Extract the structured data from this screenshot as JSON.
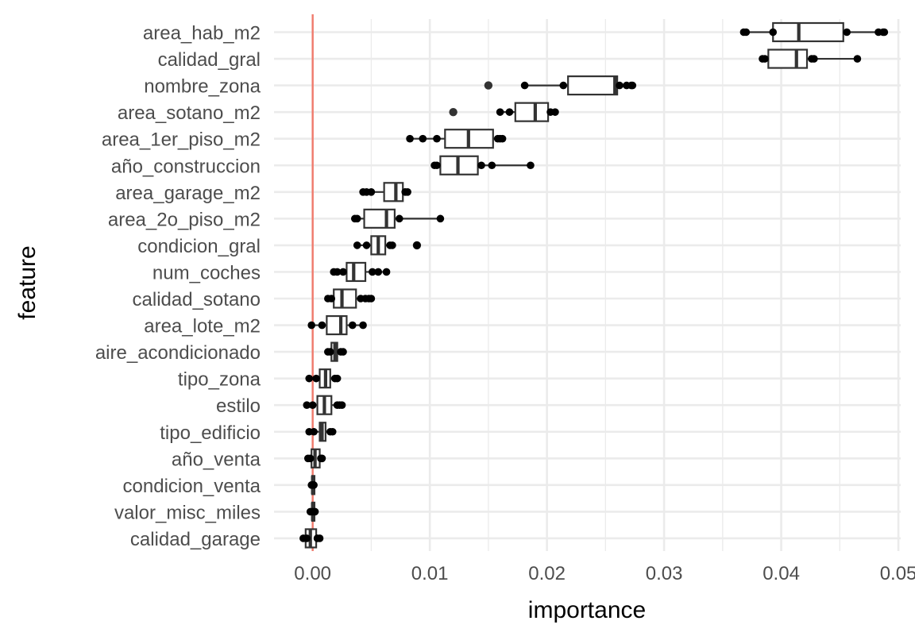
{
  "chart_data": {
    "type": "boxplot",
    "xlabel": "importance",
    "ylabel": "feature",
    "xlim": [
      -0.0033,
      0.0502
    ],
    "x_ticks": [
      0.0,
      0.01,
      0.02,
      0.03,
      0.04,
      0.05
    ],
    "x_tick_labels": [
      "0.00",
      "0.01",
      "0.02",
      "0.03",
      "0.04",
      "0.05"
    ],
    "grid": true,
    "reference_line": {
      "x": 0.0,
      "color": "#f07a6c"
    },
    "box_color": "#333333",
    "point_color": "#000000",
    "features": [
      {
        "name": "area_hab_m2",
        "whisker_low": 0.0368,
        "q1": 0.0393,
        "median": 0.0415,
        "q3": 0.0453,
        "whisker_high": 0.0488,
        "outliers": [],
        "points": [
          0.0368,
          0.037,
          0.0393,
          0.0456,
          0.0483,
          0.0487,
          0.0488
        ]
      },
      {
        "name": "calidad_gral",
        "whisker_low": 0.0384,
        "q1": 0.0389,
        "median": 0.0413,
        "q3": 0.0422,
        "whisker_high": 0.0465,
        "outliers": [],
        "points": [
          0.0384,
          0.0386,
          0.0426,
          0.0428,
          0.0465
        ]
      },
      {
        "name": "nombre_zona",
        "whisker_low": 0.0181,
        "q1": 0.0218,
        "median": 0.0258,
        "q3": 0.026,
        "whisker_high": 0.0273,
        "outliers": [
          0.015
        ],
        "points": [
          0.0181,
          0.0214,
          0.0262,
          0.0268,
          0.0272,
          0.0273
        ]
      },
      {
        "name": "area_sotano_m2",
        "whisker_low": 0.016,
        "q1": 0.0173,
        "median": 0.019,
        "q3": 0.0201,
        "whisker_high": 0.0207,
        "outliers": [
          0.012
        ],
        "points": [
          0.016,
          0.0168,
          0.0203,
          0.0207
        ]
      },
      {
        "name": "area_1er_piso_m2",
        "whisker_low": 0.0083,
        "q1": 0.0113,
        "median": 0.0133,
        "q3": 0.0154,
        "whisker_high": 0.0162,
        "outliers": [],
        "points": [
          0.0083,
          0.0094,
          0.0106,
          0.0158,
          0.016,
          0.0162
        ]
      },
      {
        "name": "año_construccion",
        "whisker_low": 0.0104,
        "q1": 0.0109,
        "median": 0.0124,
        "q3": 0.0141,
        "whisker_high": 0.0186,
        "outliers": [],
        "points": [
          0.0104,
          0.0106,
          0.0144,
          0.0153,
          0.0186
        ]
      },
      {
        "name": "area_garage_m2",
        "whisker_low": 0.0043,
        "q1": 0.0061,
        "median": 0.0071,
        "q3": 0.0077,
        "whisker_high": 0.0081,
        "outliers": [],
        "points": [
          0.0043,
          0.0046,
          0.005,
          0.0079,
          0.0081
        ]
      },
      {
        "name": "area_2o_piso_m2",
        "whisker_low": 0.0036,
        "q1": 0.0044,
        "median": 0.0063,
        "q3": 0.007,
        "whisker_high": 0.0109,
        "outliers": [],
        "points": [
          0.0036,
          0.0038,
          0.0074,
          0.0109
        ]
      },
      {
        "name": "condicion_gral",
        "whisker_low": 0.0038,
        "q1": 0.005,
        "median": 0.0056,
        "q3": 0.0062,
        "whisker_high": 0.0068,
        "outliers": [
          0.0089
        ],
        "points": [
          0.0038,
          0.0046,
          0.0066,
          0.0068,
          0.0089
        ]
      },
      {
        "name": "num_coches",
        "whisker_low": 0.0018,
        "q1": 0.0029,
        "median": 0.0035,
        "q3": 0.0045,
        "whisker_high": 0.0063,
        "outliers": [],
        "points": [
          0.0018,
          0.0021,
          0.0026,
          0.0051,
          0.0056,
          0.0063
        ]
      },
      {
        "name": "calidad_sotano",
        "whisker_low": 0.0013,
        "q1": 0.0018,
        "median": 0.0025,
        "q3": 0.0037,
        "whisker_high": 0.005,
        "outliers": [],
        "points": [
          0.0013,
          0.0016,
          0.0041,
          0.0045,
          0.0048,
          0.005
        ]
      },
      {
        "name": "area_lote_m2",
        "whisker_low": -0.0001,
        "q1": 0.0012,
        "median": 0.0024,
        "q3": 0.0029,
        "whisker_high": 0.0043,
        "outliers": [],
        "points": [
          -0.0001,
          0.0008,
          0.0034,
          0.0043
        ]
      },
      {
        "name": "aire_acondicionado",
        "whisker_low": 0.0013,
        "q1": 0.0016,
        "median": 0.0019,
        "q3": 0.0021,
        "whisker_high": 0.0026,
        "outliers": [],
        "points": [
          0.0013,
          0.0015,
          0.0024,
          0.0026
        ]
      },
      {
        "name": "tipo_zona",
        "whisker_low": -0.0003,
        "q1": 0.0006,
        "median": 0.0011,
        "q3": 0.0015,
        "whisker_high": 0.0021,
        "outliers": [],
        "points": [
          -0.0003,
          0.0003,
          0.0019,
          0.0021
        ]
      },
      {
        "name": "estilo",
        "whisker_low": -0.0005,
        "q1": 0.0004,
        "median": 0.001,
        "q3": 0.0016,
        "whisker_high": 0.0025,
        "outliers": [],
        "points": [
          -0.0005,
          0.0,
          0.0021,
          0.0023,
          0.0025
        ]
      },
      {
        "name": "tipo_edificio",
        "whisker_low": -0.0003,
        "q1": 0.0006,
        "median": 0.0008,
        "q3": 0.0011,
        "whisker_high": 0.0017,
        "outliers": [],
        "points": [
          -0.0003,
          0.0001,
          0.0015,
          0.0017
        ]
      },
      {
        "name": "año_venta",
        "whisker_low": -0.0004,
        "q1": -0.0001,
        "median": 0.0002,
        "q3": 0.0006,
        "whisker_high": 0.0008,
        "outliers": [],
        "points": [
          -0.0004,
          -0.0002,
          0.0007,
          0.0008
        ]
      },
      {
        "name": "condicion_venta",
        "whisker_low": -0.0001,
        "q1": -5e-05,
        "median": 0.0,
        "q3": 5e-05,
        "whisker_high": 0.0001,
        "outliers": [],
        "points": [
          -0.0001,
          0.0,
          0.0001
        ]
      },
      {
        "name": "valor_misc_miles",
        "whisker_low": -0.0002,
        "q1": -5e-05,
        "median": 0.0,
        "q3": 5e-05,
        "whisker_high": 0.0002,
        "outliers": [],
        "points": [
          -0.0002,
          0.0,
          0.0002
        ]
      },
      {
        "name": "calidad_garage",
        "whisker_low": -0.0008,
        "q1": -0.0006,
        "median": -0.0002,
        "q3": 0.0003,
        "whisker_high": 0.0006,
        "outliers": [],
        "points": [
          -0.0008,
          -0.0005,
          0.0004,
          0.0006
        ]
      }
    ]
  }
}
